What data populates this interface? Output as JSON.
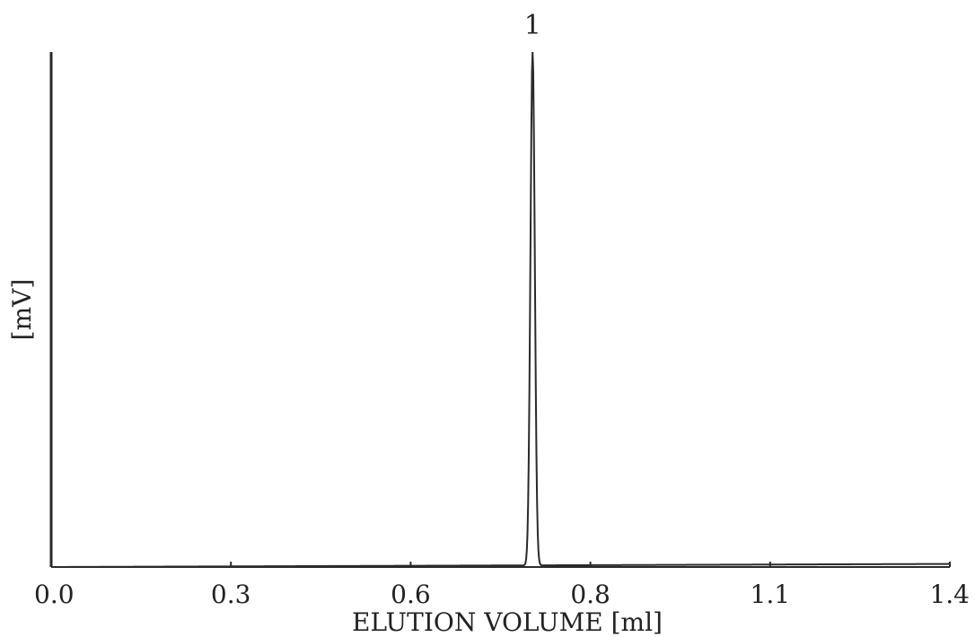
{
  "colors": {
    "line": "#2a2a2a",
    "text": "#222222",
    "background": "#ffffff"
  },
  "chart_data": {
    "type": "line",
    "title": "",
    "xlabel": "ELUTION VOLUME [ml]",
    "ylabel": "[mV]",
    "x_ticks": [
      "0.0",
      "0.3",
      "0.6",
      "0.8",
      "1.1",
      "1.4"
    ],
    "xlim": [
      0.0,
      1.4
    ],
    "ylim": [
      0,
      100
    ],
    "grid": false,
    "legend": "none",
    "peaks": [
      {
        "label": "1",
        "x": 0.75,
        "y": 100,
        "fwhm": 0.008
      }
    ],
    "baseline": {
      "y_start": 0.0,
      "y_end": 0.6
    }
  }
}
